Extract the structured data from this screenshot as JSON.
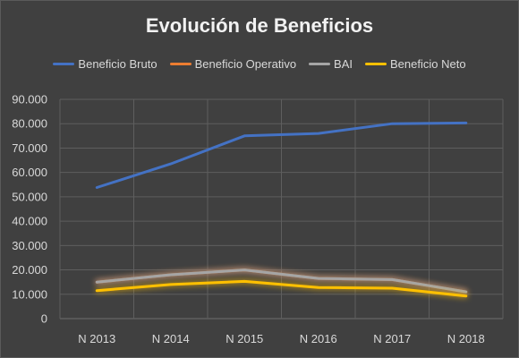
{
  "chart_data": {
    "type": "line",
    "title": "Evolución de Beneficios",
    "categories": [
      "N 2013",
      "N 2014",
      "N 2015",
      "N 2016",
      "N 2017",
      "N 2018"
    ],
    "ylim": [
      0,
      90000
    ],
    "ytick_labels": [
      "0",
      "10.000",
      "20.000",
      "30.000",
      "40.000",
      "50.000",
      "60.000",
      "70.000",
      "80.000",
      "90.000"
    ],
    "ytick_values": [
      0,
      10000,
      20000,
      30000,
      40000,
      50000,
      60000,
      70000,
      80000,
      90000
    ],
    "grid": true,
    "legend_position": "top",
    "series": [
      {
        "name": "Beneficio Bruto",
        "color": "#4472C4",
        "values": [
          53800,
          63500,
          75000,
          76000,
          80000,
          80300
        ]
      },
      {
        "name": "Beneficio Operativo",
        "color": "#ED7D31",
        "values": [
          15000,
          18000,
          20000,
          16500,
          16000,
          11000
        ]
      },
      {
        "name": "BAI",
        "color": "#A5A5A5",
        "values": [
          15000,
          18000,
          20000,
          16500,
          16000,
          11000
        ]
      },
      {
        "name": "Beneficio Neto",
        "color": "#FFC000",
        "values": [
          11500,
          14000,
          15300,
          12800,
          12500,
          9300
        ]
      }
    ]
  }
}
